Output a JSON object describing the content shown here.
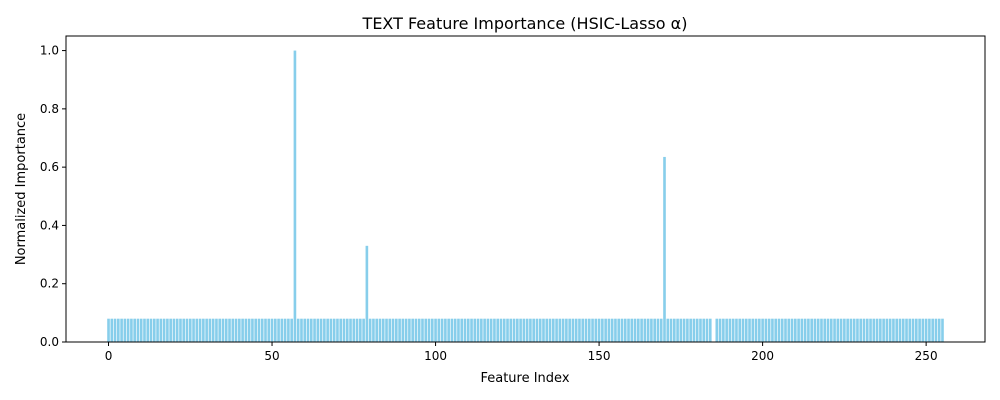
{
  "chart_data": {
    "type": "bar",
    "title": "TEXT Feature Importance (HSIC-Lasso α)",
    "xlabel": "Feature Index",
    "ylabel": "Normalized Importance",
    "xlim": [
      -13,
      268
    ],
    "ylim": [
      0.0,
      1.05
    ],
    "xticks": [
      0,
      50,
      100,
      150,
      200,
      250
    ],
    "yticks": [
      0.0,
      0.2,
      0.4,
      0.6,
      0.8,
      1.0
    ],
    "ytick_format_decimals": 1,
    "grid": false,
    "bar_color": "#87CEEB",
    "n_features": 256,
    "baseline_value": 0.08,
    "highlighted_bars": [
      {
        "x": 57,
        "value": 1.0
      },
      {
        "x": 79,
        "value": 0.33
      },
      {
        "x": 170,
        "value": 0.635
      }
    ],
    "missing_bars": [
      185
    ]
  }
}
